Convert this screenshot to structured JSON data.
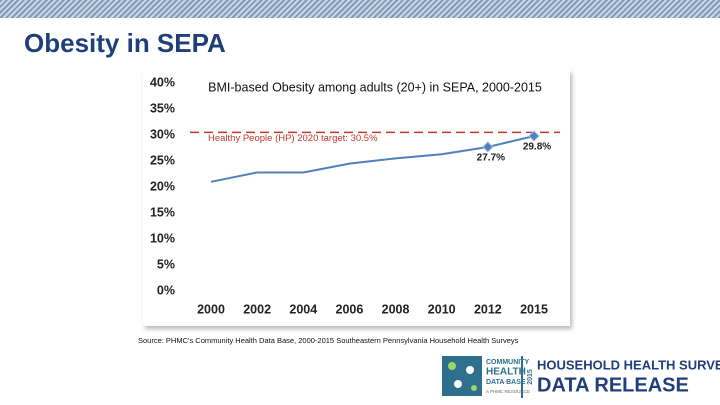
{
  "slide": {
    "title": "Obesity in SEPA",
    "source": "Source: PHMC's Community Health Data Base, 2000-2015 Southeastern Pennsylvania Household Health Surveys"
  },
  "logo": {
    "line1": "COMMUNITY",
    "line2": "HEALTH",
    "line3": "DATA BASE",
    "line4": "A PHMC RESOURCE",
    "year": "2015",
    "survey": "HOUSEHOLD HEALTH SURVEY",
    "release": "DATA RELEASE"
  },
  "chart_data": {
    "type": "line",
    "title": "BMI-based Obesity among adults (20+) in SEPA, 2000-2015",
    "categories": [
      "2000",
      "2002",
      "2004",
      "2006",
      "2008",
      "2010",
      "2012",
      "2015"
    ],
    "series": [
      {
        "name": "Obesity",
        "color": "#4f81bd",
        "values": [
          21,
          22.8,
          22.8,
          24.5,
          25.5,
          26.3,
          27.7,
          29.8
        ],
        "value_labels": [
          null,
          null,
          null,
          null,
          null,
          null,
          "27.7%",
          "29.8%"
        ]
      }
    ],
    "target": 30.5,
    "target_color": "#c0392b",
    "target_label": "Healthy People (HP) 2020 target: 30.5%",
    "ylim": [
      0,
      40
    ],
    "yticks": [
      {
        "value": 0,
        "label": "0%"
      },
      {
        "value": 5,
        "label": "5%"
      },
      {
        "value": 10,
        "label": "10%"
      },
      {
        "value": 15,
        "label": "15%"
      },
      {
        "value": 20,
        "label": "20%"
      },
      {
        "value": 25,
        "label": "25%"
      },
      {
        "value": 30,
        "label": "30%"
      },
      {
        "value": 35,
        "label": "35%"
      },
      {
        "value": 40,
        "label": "40%"
      }
    ]
  }
}
